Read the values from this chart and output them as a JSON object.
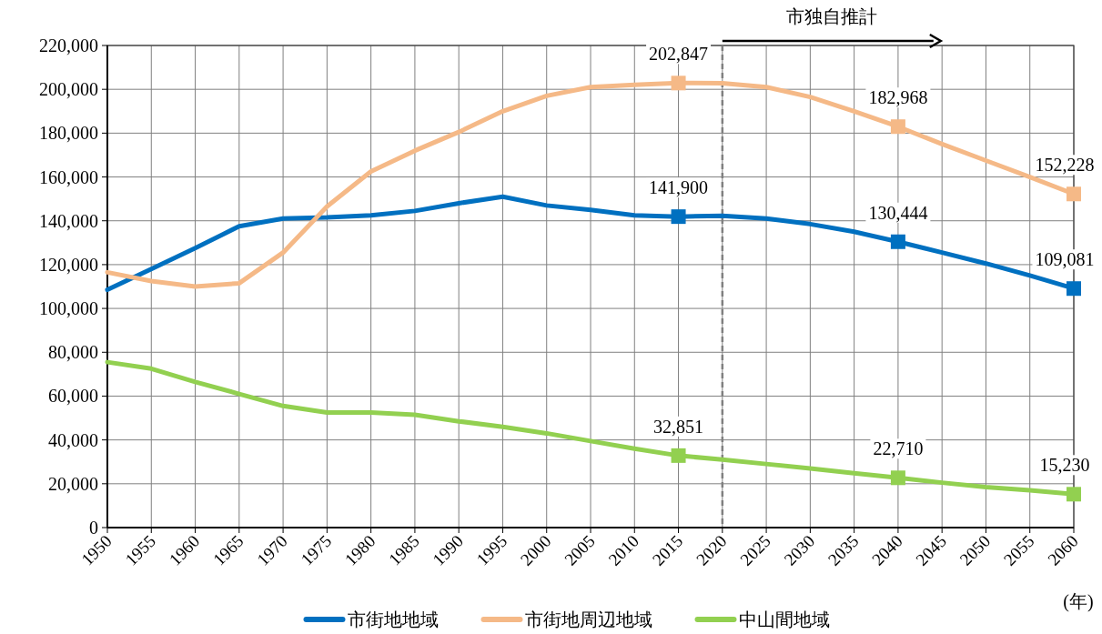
{
  "chart_data": {
    "type": "line",
    "xlabel": "(年)",
    "x": [
      1950,
      1955,
      1960,
      1965,
      1970,
      1975,
      1980,
      1985,
      1990,
      1995,
      2000,
      2005,
      2010,
      2015,
      2020,
      2025,
      2030,
      2035,
      2040,
      2045,
      2050,
      2055,
      2060
    ],
    "series": [
      {
        "name": "市街地地域",
        "color": "#0070c0",
        "values": [
          108500,
          118000,
          127500,
          137500,
          141000,
          141500,
          142500,
          144500,
          148000,
          151000,
          147000,
          145000,
          142500,
          141900,
          142300,
          141000,
          138500,
          135000,
          130444,
          125500,
          120500,
          115000,
          109081
        ],
        "value_labels": [
          null,
          null,
          null,
          null,
          null,
          null,
          null,
          null,
          null,
          null,
          null,
          null,
          null,
          "141,900",
          null,
          null,
          null,
          null,
          "130,444",
          null,
          null,
          null,
          "109,081"
        ]
      },
      {
        "name": "市街地周辺地域",
        "color": "#f5b987",
        "values": [
          116500,
          112500,
          110000,
          111500,
          125500,
          146500,
          162500,
          172000,
          180500,
          190000,
          197000,
          201000,
          202000,
          202847,
          202800,
          201000,
          196500,
          190000,
          182968,
          175000,
          167500,
          160000,
          152228
        ],
        "value_labels": [
          null,
          null,
          null,
          null,
          null,
          null,
          null,
          null,
          null,
          null,
          null,
          null,
          null,
          "202,847",
          null,
          null,
          null,
          null,
          "182,968",
          null,
          null,
          null,
          "152,228"
        ]
      },
      {
        "name": "中山間地域",
        "color": "#92d050",
        "values": [
          75500,
          72500,
          66500,
          61000,
          55500,
          52500,
          52500,
          51500,
          48500,
          46000,
          43000,
          39500,
          36000,
          32851,
          31000,
          29000,
          27000,
          24800,
          22710,
          20500,
          18500,
          17000,
          15230
        ],
        "value_labels": [
          null,
          null,
          null,
          null,
          null,
          null,
          null,
          null,
          null,
          null,
          null,
          null,
          null,
          "32,851",
          null,
          null,
          null,
          null,
          "22,710",
          null,
          null,
          null,
          "15,230"
        ]
      }
    ],
    "xlim": [
      1950,
      2060
    ],
    "xticks": [
      1950,
      1955,
      1960,
      1965,
      1970,
      1975,
      1980,
      1985,
      1990,
      1995,
      2000,
      2005,
      2010,
      2015,
      2020,
      2025,
      2030,
      2035,
      2040,
      2045,
      2050,
      2055,
      2060
    ],
    "ylim": [
      0,
      220000
    ],
    "yticks": [
      0,
      {
        "value": 20000,
        "label": "20,000"
      },
      {
        "value": 40000,
        "label": "40,000"
      },
      {
        "value": 60000,
        "label": "60,000"
      },
      {
        "value": 80000,
        "label": "80,000"
      },
      {
        "value": 100000,
        "label": "100,000"
      },
      {
        "value": 120000,
        "label": "120,000"
      },
      {
        "value": 140000,
        "label": "140,000"
      },
      {
        "value": 160000,
        "label": "160,000"
      },
      {
        "value": 180000,
        "label": "180,000"
      },
      {
        "value": 200000,
        "label": "200,000"
      },
      {
        "value": 220000,
        "label": "220,000"
      }
    ],
    "ref_lines": [
      {
        "axis": "x",
        "value": 2020,
        "color": "#808080",
        "line_style": "dashed"
      }
    ],
    "annotations": [
      "市独自推計"
    ],
    "grid": true,
    "legend": "bottom",
    "line_style": "solid"
  }
}
